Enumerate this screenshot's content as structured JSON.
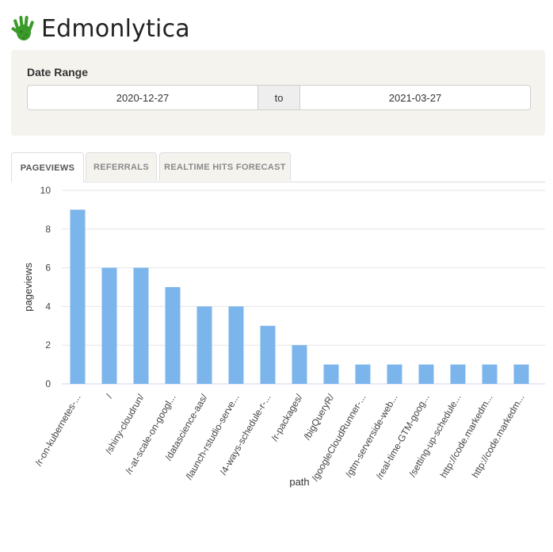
{
  "app": {
    "title": "Edmonlytica",
    "logo_icon": "green-handprint-icon"
  },
  "date_range": {
    "label": "Date Range",
    "start": "2020-12-27",
    "separator": "to",
    "end": "2021-03-27"
  },
  "tabs": [
    {
      "label": "PAGEVIEWS",
      "active": true
    },
    {
      "label": "REFERRALS",
      "active": false
    },
    {
      "label": "REALTIME HITS FORECAST",
      "active": false
    }
  ],
  "colors": {
    "bar": "#7cb5ec",
    "panel": "#f5f3ee",
    "logo": "#3a9a2a"
  },
  "chart_data": {
    "type": "bar",
    "xlabel": "path",
    "ylabel": "pageviews",
    "ylim": [
      0,
      10
    ],
    "yticks": [
      0,
      2,
      4,
      6,
      8,
      10
    ],
    "grid": true,
    "categories": [
      "/r-on-kubernetes-...",
      "/",
      "/shiny-cloudrun/",
      "/r-at-scale-on-googl...",
      "/datascience-aas/",
      "/launch-rstudio-serve...",
      "/4-ways-schedule-r-...",
      "/r-packages/",
      "/bigQueryR/",
      "/googleCloudRunner-...",
      "/gtm-serverside-web...",
      "/real-time-GTM-goog...",
      "/setting-up-schedule...",
      "http://code.markedm...",
      "http://code.markedm..."
    ],
    "values": [
      9,
      6,
      6,
      5,
      4,
      4,
      3,
      2,
      1,
      1,
      1,
      1,
      1,
      1,
      1
    ]
  }
}
